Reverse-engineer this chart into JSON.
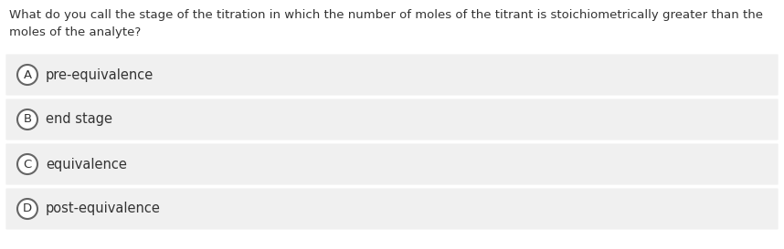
{
  "question": "What do you call the stage of the titration in which the number of moles of the titrant is stoichiometrically greater than the\nmoles of the analyte?",
  "options": [
    {
      "letter": "A",
      "text": "pre-equivalence"
    },
    {
      "letter": "B",
      "text": "end stage"
    },
    {
      "letter": "C",
      "text": "equivalence"
    },
    {
      "letter": "D",
      "text": "post-equivalence"
    }
  ],
  "bg_color": "#ffffff",
  "option_bg_color": "#f0f0f0",
  "question_font_size": 9.5,
  "option_font_size": 10.5,
  "letter_font_size": 9.5,
  "text_color": "#333333",
  "circle_edge_color": "#666666",
  "circle_face_color": "#ffffff",
  "fig_width": 8.58,
  "fig_height": 2.73,
  "dpi": 100
}
